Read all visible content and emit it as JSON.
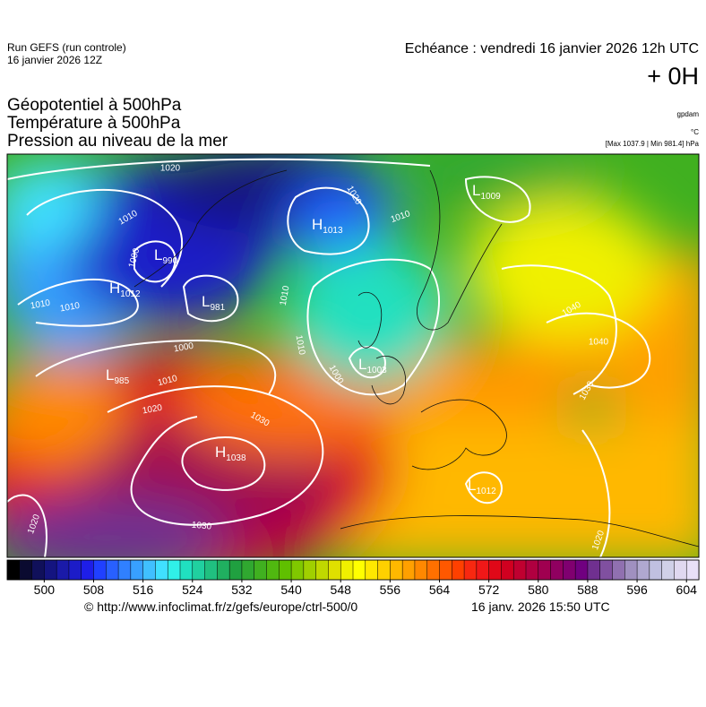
{
  "header": {
    "run": "Run GEFS (run controle)",
    "run_date": "16 janvier 2026 12Z",
    "valid": "Echéance : vendredi 16 janvier 2026 12h UTC",
    "lead": "+ 0H",
    "fields": [
      "Géopotentiel à 500hPa",
      "Température à 500hPa",
      "Pression au niveau de la mer"
    ],
    "units": [
      "gpdam",
      "°C",
      "[Max 1037.9 | Min 981.4] hPa"
    ]
  },
  "map": {
    "centers": [
      {
        "kind": "L",
        "value": 990
      },
      {
        "kind": "H",
        "value": 1012
      },
      {
        "kind": "L",
        "value": 981
      },
      {
        "kind": "L",
        "value": 985
      },
      {
        "kind": "H",
        "value": 1038
      },
      {
        "kind": "H",
        "value": 1013
      },
      {
        "kind": "L",
        "value": 1009
      },
      {
        "kind": "L",
        "value": 1003
      },
      {
        "kind": "L",
        "value": 1012
      }
    ],
    "isobar_labels": [
      1020,
      1010,
      1000,
      1010,
      1010,
      1000,
      1010,
      1020,
      1030,
      1030,
      1020,
      1020,
      1010,
      1010,
      1010,
      1000,
      1040,
      1040,
      1030,
      1020
    ]
  },
  "colorbar": {
    "range": [
      494,
      606
    ],
    "ticks": [
      500,
      508,
      516,
      524,
      532,
      540,
      548,
      556,
      564,
      572,
      580,
      588,
      596,
      604
    ],
    "colors": [
      "#000000",
      "#0a0a30",
      "#10105a",
      "#141480",
      "#1a1aa8",
      "#1c1cc8",
      "#1e1ee8",
      "#2040ff",
      "#2860ff",
      "#3080ff",
      "#38a0ff",
      "#40c0ff",
      "#40e0ff",
      "#30f0e8",
      "#20e0c0",
      "#20d0a0",
      "#20c080",
      "#20b060",
      "#20a040",
      "#30a830",
      "#40b020",
      "#50b810",
      "#60c000",
      "#80c800",
      "#a0d000",
      "#c0d800",
      "#e0e000",
      "#f0f000",
      "#ffff00",
      "#ffe800",
      "#ffd000",
      "#ffb800",
      "#ffa000",
      "#ff8800",
      "#ff7000",
      "#ff5800",
      "#ff4000",
      "#f82810",
      "#f01818",
      "#e00818",
      "#d00020",
      "#c00030",
      "#b00040",
      "#a00050",
      "#900060",
      "#800070",
      "#700080",
      "#703090",
      "#8050a0",
      "#9070b0",
      "#a090c0",
      "#b0a8d0",
      "#c0c0e0",
      "#d0d0e8",
      "#e0d8f0",
      "#e8e0f8"
    ]
  },
  "footer": {
    "source": "© http://www.infoclimat.fr/z/gefs/europe/ctrl-500/0",
    "generated": "16 janv. 2026 15:50 UTC"
  }
}
